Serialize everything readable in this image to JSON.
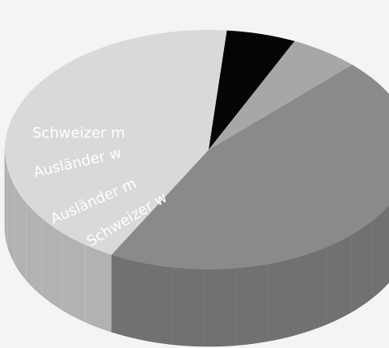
{
  "chart_data": {
    "type": "pie",
    "style": "3d",
    "categories": [
      "Schweizer m",
      "Schweizer w",
      "Ausländer m",
      "Ausländer w"
    ],
    "values": [
      45.5,
      43.5,
      5.5,
      5.5
    ],
    "colors": [
      "#8a8a8a",
      "#d9d9d9",
      "#050505",
      "#a7a7a7"
    ],
    "labels_on_slices": true,
    "legend": "none"
  }
}
